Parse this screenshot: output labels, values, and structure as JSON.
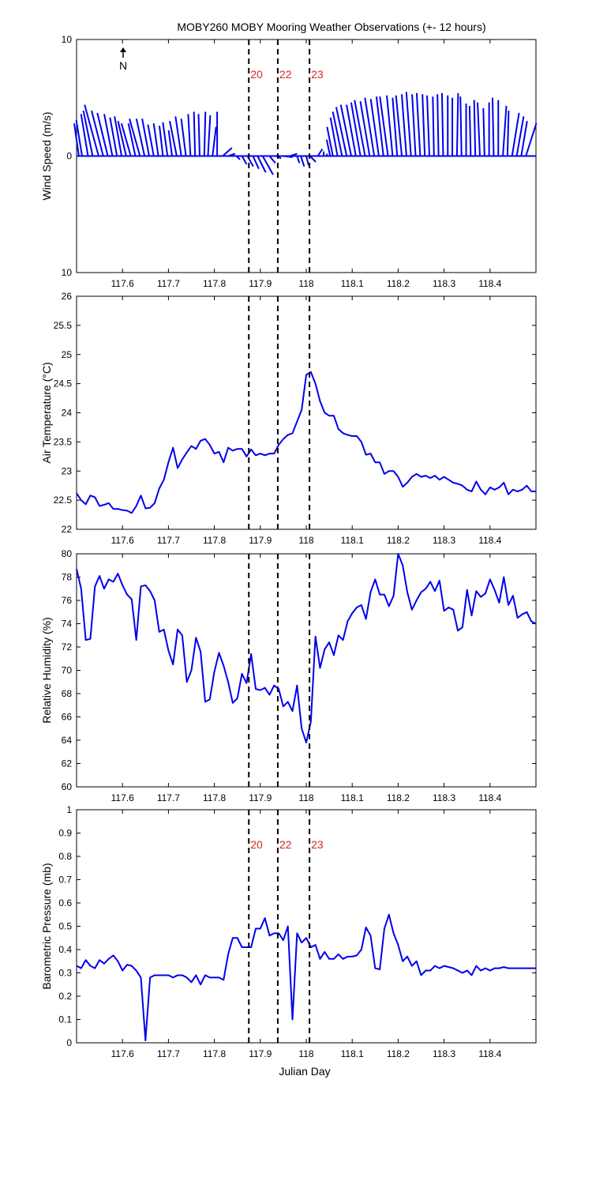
{
  "title": "MOBY260 MOBY Mooring Weather Observations (+- 12 hours)",
  "north_label": "N",
  "colors": {
    "series": "#0000ee",
    "marker_line": "#000000",
    "marker_text": "#d62728"
  },
  "chart_data": [
    {
      "id": "wind",
      "type": "line",
      "ylabel": "Wind Speed (m/s)",
      "xlim": [
        117.5,
        118.5
      ],
      "ylim": [
        -10,
        10
      ],
      "y_tick_values": [
        -10,
        0,
        10
      ],
      "y_tick_labels": [
        "10",
        "0",
        "10"
      ],
      "x_ticks": [
        "117.6",
        "117.7",
        "117.8",
        "117.9",
        "118",
        "118.1",
        "118.2",
        "118.3",
        "118.4"
      ],
      "event_markers": [
        {
          "x": 117.875,
          "label": "20"
        },
        {
          "x": 117.938,
          "label": "22"
        },
        {
          "x": 118.007,
          "label": "23"
        }
      ],
      "wind_vectors": [
        [
          117.505,
          -0.4,
          2.8
        ],
        [
          117.512,
          -0.5,
          3.1
        ],
        [
          117.525,
          -0.6,
          3.6
        ],
        [
          117.535,
          -0.8,
          3.9
        ],
        [
          117.548,
          -1.2,
          4.4
        ],
        [
          117.558,
          -1.0,
          3.9
        ],
        [
          117.568,
          -0.9,
          3.7
        ],
        [
          117.578,
          -0.7,
          3.6
        ],
        [
          117.588,
          -0.6,
          3.3
        ],
        [
          117.598,
          -0.6,
          3.4
        ],
        [
          117.608,
          -0.7,
          3.0
        ],
        [
          117.618,
          -0.8,
          2.8
        ],
        [
          117.628,
          -0.6,
          2.8
        ],
        [
          117.638,
          -0.9,
          3.2
        ],
        [
          117.648,
          -0.7,
          3.2
        ],
        [
          117.658,
          -0.6,
          3.2
        ],
        [
          117.668,
          -0.5,
          2.7
        ],
        [
          117.678,
          -0.4,
          2.8
        ],
        [
          117.688,
          -0.3,
          2.6
        ],
        [
          117.698,
          -0.4,
          2.9
        ],
        [
          117.708,
          -0.3,
          2.2
        ],
        [
          117.718,
          -0.6,
          3.0
        ],
        [
          117.728,
          -0.5,
          3.4
        ],
        [
          117.738,
          -0.4,
          3.2
        ],
        [
          117.748,
          -0.2,
          3.6
        ],
        [
          117.758,
          -0.1,
          3.8
        ],
        [
          117.768,
          -0.1,
          3.6
        ],
        [
          117.778,
          0.1,
          3.8
        ],
        [
          117.786,
          0.2,
          3.5
        ],
        [
          117.796,
          0.3,
          2.5
        ],
        [
          117.806,
          0.0,
          3.8
        ],
        [
          117.818,
          0.8,
          0.7
        ],
        [
          117.83,
          0.6,
          0.2
        ],
        [
          117.848,
          0.3,
          -0.3
        ],
        [
          117.86,
          0.4,
          -0.7
        ],
        [
          117.872,
          0.5,
          -0.9
        ],
        [
          117.884,
          0.5,
          -1.1
        ],
        [
          117.894,
          0.7,
          -1.4
        ],
        [
          117.905,
          0.9,
          -1.6
        ],
        [
          117.92,
          0.5,
          -0.6
        ],
        [
          117.935,
          0.4,
          -0.2
        ],
        [
          117.95,
          0.8,
          -0.1
        ],
        [
          117.965,
          0.6,
          0.2
        ],
        [
          117.98,
          0.2,
          -0.6
        ],
        [
          117.988,
          0.3,
          -0.9
        ],
        [
          118.0,
          0.2,
          -0.8
        ],
        [
          118.008,
          0.5,
          -0.5
        ],
        [
          118.016,
          0.4,
          0.0
        ],
        [
          118.025,
          0.4,
          0.6
        ],
        [
          118.038,
          0.0,
          0.4
        ],
        [
          118.045,
          0.0,
          0.2
        ],
        [
          118.052,
          -0.3,
          1.4
        ],
        [
          118.058,
          -0.5,
          2.5
        ],
        [
          118.068,
          -0.6,
          3.3
        ],
        [
          118.078,
          -0.8,
          3.8
        ],
        [
          118.088,
          -0.9,
          4.2
        ],
        [
          118.098,
          -0.9,
          4.4
        ],
        [
          118.108,
          -0.8,
          4.4
        ],
        [
          118.118,
          -0.8,
          4.6
        ],
        [
          118.128,
          -0.9,
          4.8
        ],
        [
          118.138,
          -0.8,
          4.7
        ],
        [
          118.148,
          -0.8,
          5.0
        ],
        [
          118.158,
          -0.7,
          4.9
        ],
        [
          118.168,
          -0.6,
          5.1
        ],
        [
          118.178,
          -0.7,
          5.1
        ],
        [
          118.188,
          -0.5,
          5.2
        ],
        [
          118.198,
          -0.4,
          5.0
        ],
        [
          118.208,
          -0.5,
          5.2
        ],
        [
          118.218,
          -0.4,
          5.3
        ],
        [
          118.228,
          -0.4,
          5.5
        ],
        [
          118.238,
          -0.3,
          5.3
        ],
        [
          118.248,
          -0.3,
          5.4
        ],
        [
          118.258,
          -0.2,
          5.3
        ],
        [
          118.268,
          -0.2,
          5.2
        ],
        [
          118.278,
          -0.1,
          5.1
        ],
        [
          118.288,
          -0.1,
          5.3
        ],
        [
          118.298,
          -0.1,
          5.4
        ],
        [
          118.308,
          0.0,
          5.2
        ],
        [
          118.318,
          0.0,
          5.0
        ],
        [
          118.328,
          0.1,
          5.4
        ],
        [
          118.338,
          -0.1,
          5.1
        ],
        [
          118.348,
          0.0,
          4.5
        ],
        [
          118.358,
          -0.1,
          4.3
        ],
        [
          118.368,
          -0.1,
          4.8
        ],
        [
          118.378,
          -0.2,
          4.6
        ],
        [
          118.388,
          -0.1,
          4.1
        ],
        [
          118.398,
          0.0,
          4.6
        ],
        [
          118.408,
          -0.1,
          5.0
        ],
        [
          118.418,
          0.0,
          4.8
        ],
        [
          118.428,
          0.3,
          4.3
        ],
        [
          118.438,
          0.1,
          3.9
        ],
        [
          118.448,
          0.6,
          3.7
        ],
        [
          118.458,
          0.6,
          3.4
        ],
        [
          118.468,
          0.5,
          3.0
        ],
        [
          118.478,
          0.9,
          2.8
        ]
      ]
    },
    {
      "id": "airtemp",
      "type": "line",
      "ylabel": "Air Temperature (°C)",
      "xlim": [
        117.5,
        118.5
      ],
      "ylim": [
        22,
        26
      ],
      "y_tick_values": [
        22,
        22.5,
        23,
        23.5,
        24,
        24.5,
        25,
        25.5,
        26
      ],
      "y_tick_labels": [
        "22",
        "22.5",
        "23",
        "23.5",
        "24",
        "24.5",
        "25",
        "25.5",
        "26"
      ],
      "x_ticks": [
        "117.6",
        "117.7",
        "117.8",
        "117.9",
        "118",
        "118.1",
        "118.2",
        "118.3",
        "118.4"
      ],
      "event_markers": [
        {
          "x": 117.875,
          "label": ""
        },
        {
          "x": 117.938,
          "label": ""
        },
        {
          "x": 118.007,
          "label": ""
        }
      ],
      "x": [
        117.5,
        117.51,
        117.52,
        117.53,
        117.54,
        117.55,
        117.56,
        117.57,
        117.58,
        117.59,
        117.6,
        117.61,
        117.62,
        117.63,
        117.64,
        117.65,
        117.66,
        117.67,
        117.68,
        117.69,
        117.7,
        117.71,
        117.72,
        117.73,
        117.74,
        117.75,
        117.76,
        117.77,
        117.78,
        117.79,
        117.8,
        117.81,
        117.82,
        117.83,
        117.84,
        117.85,
        117.86,
        117.87,
        117.88,
        117.89,
        117.9,
        117.91,
        117.92,
        117.93,
        117.94,
        117.95,
        117.96,
        117.97,
        117.98,
        117.99,
        118.0,
        118.01,
        118.02,
        118.03,
        118.04,
        118.05,
        118.06,
        118.07,
        118.08,
        118.09,
        118.1,
        118.11,
        118.12,
        118.13,
        118.14,
        118.15,
        118.16,
        118.17,
        118.18,
        118.19,
        118.2,
        118.21,
        118.22,
        118.23,
        118.24,
        118.25,
        118.26,
        118.27,
        118.28,
        118.29,
        118.3,
        118.31,
        118.32,
        118.33,
        118.34,
        118.35,
        118.36,
        118.37,
        118.38,
        118.39,
        118.4,
        118.41,
        118.42,
        118.43,
        118.44,
        118.45,
        118.46,
        118.47,
        118.48,
        118.49,
        118.5
      ],
      "values": [
        22.62,
        22.5,
        22.43,
        22.58,
        22.55,
        22.4,
        22.42,
        22.45,
        22.35,
        22.35,
        22.33,
        22.32,
        22.28,
        22.4,
        22.58,
        22.36,
        22.37,
        22.45,
        22.7,
        22.85,
        23.15,
        23.4,
        23.05,
        23.2,
        23.32,
        23.43,
        23.38,
        23.52,
        23.55,
        23.45,
        23.3,
        23.33,
        23.15,
        23.4,
        23.35,
        23.38,
        23.38,
        23.25,
        23.37,
        23.27,
        23.3,
        23.27,
        23.3,
        23.3,
        23.45,
        23.55,
        23.62,
        23.65,
        23.85,
        24.05,
        24.65,
        24.7,
        24.5,
        24.2,
        24.0,
        23.95,
        23.95,
        23.72,
        23.65,
        23.62,
        23.6,
        23.6,
        23.5,
        23.28,
        23.3,
        23.15,
        23.15,
        22.95,
        23.0,
        23.0,
        22.9,
        22.73,
        22.8,
        22.9,
        22.95,
        22.9,
        22.92,
        22.88,
        22.92,
        22.85,
        22.9,
        22.85,
        22.8,
        22.78,
        22.75,
        22.68,
        22.65,
        22.82,
        22.68,
        22.6,
        22.72,
        22.68,
        22.72,
        22.8,
        22.6,
        22.68,
        22.65,
        22.68,
        22.75,
        22.65,
        22.65
      ]
    },
    {
      "id": "humidity",
      "type": "line",
      "ylabel": "Relative Humidity (%)",
      "xlim": [
        117.5,
        118.5
      ],
      "ylim": [
        60,
        80
      ],
      "y_tick_values": [
        60,
        62,
        64,
        66,
        68,
        70,
        72,
        74,
        76,
        78,
        80
      ],
      "y_tick_labels": [
        "60",
        "62",
        "64",
        "66",
        "68",
        "70",
        "72",
        "74",
        "76",
        "78",
        "80"
      ],
      "x_ticks": [
        "117.6",
        "117.7",
        "117.8",
        "117.9",
        "118",
        "118.1",
        "118.2",
        "118.3",
        "118.4"
      ],
      "event_markers": [
        {
          "x": 117.875,
          "label": ""
        },
        {
          "x": 117.938,
          "label": ""
        },
        {
          "x": 118.007,
          "label": ""
        }
      ],
      "x": [
        117.5,
        117.51,
        117.52,
        117.53,
        117.54,
        117.55,
        117.56,
        117.57,
        117.58,
        117.59,
        117.6,
        117.61,
        117.62,
        117.63,
        117.64,
        117.65,
        117.66,
        117.67,
        117.68,
        117.69,
        117.7,
        117.71,
        117.72,
        117.73,
        117.74,
        117.75,
        117.76,
        117.77,
        117.78,
        117.79,
        117.8,
        117.81,
        117.82,
        117.83,
        117.84,
        117.85,
        117.86,
        117.87,
        117.88,
        117.89,
        117.9,
        117.91,
        117.92,
        117.93,
        117.94,
        117.95,
        117.96,
        117.97,
        117.98,
        117.99,
        118.0,
        118.01,
        118.02,
        118.03,
        118.04,
        118.05,
        118.06,
        118.07,
        118.08,
        118.09,
        118.1,
        118.11,
        118.12,
        118.13,
        118.14,
        118.15,
        118.16,
        118.17,
        118.18,
        118.19,
        118.2,
        118.21,
        118.22,
        118.23,
        118.24,
        118.25,
        118.26,
        118.27,
        118.28,
        118.29,
        118.3,
        118.31,
        118.32,
        118.33,
        118.34,
        118.35,
        118.36,
        118.37,
        118.38,
        118.39,
        118.4,
        118.41,
        118.42,
        118.43,
        118.44,
        118.45,
        118.46,
        118.47,
        118.48,
        118.49,
        118.5
      ],
      "values": [
        78.7,
        77.0,
        72.6,
        72.7,
        77.2,
        78.1,
        77.0,
        77.8,
        77.6,
        78.3,
        77.3,
        76.5,
        76.1,
        72.6,
        77.2,
        77.3,
        76.8,
        76.0,
        73.3,
        73.5,
        71.7,
        70.5,
        73.5,
        73.0,
        69.0,
        70.0,
        72.8,
        71.6,
        67.3,
        67.5,
        69.9,
        71.5,
        70.4,
        69.0,
        67.2,
        67.6,
        69.7,
        68.9,
        71.4,
        68.4,
        68.3,
        68.5,
        67.9,
        68.7,
        68.4,
        66.9,
        67.3,
        66.5,
        68.7,
        65.0,
        63.8,
        65.6,
        72.9,
        70.2,
        71.8,
        72.4,
        71.3,
        73.0,
        72.6,
        74.2,
        74.9,
        75.4,
        75.6,
        74.4,
        76.7,
        77.8,
        76.5,
        76.5,
        75.5,
        76.4,
        80.0,
        79.0,
        76.7,
        75.2,
        76.0,
        76.7,
        77.0,
        77.6,
        76.8,
        77.7,
        75.1,
        75.4,
        75.2,
        73.4,
        73.7,
        76.9,
        74.7,
        76.8,
        76.3,
        76.6,
        77.8,
        76.9,
        75.8,
        78.0,
        75.6,
        76.4,
        74.5,
        74.8,
        75.0,
        74.2,
        74.0
      ]
    },
    {
      "id": "pressure",
      "type": "line",
      "ylabel": "Barometric Pressure (mb)",
      "xlabel": "Julian Day",
      "xlim": [
        117.5,
        118.5
      ],
      "ylim": [
        0,
        1
      ],
      "y_tick_values": [
        0,
        0.1,
        0.2,
        0.3,
        0.4,
        0.5,
        0.6,
        0.7,
        0.8,
        0.9,
        1
      ],
      "y_tick_labels": [
        "0",
        "0.1",
        "0.2",
        "0.3",
        "0.4",
        "0.5",
        "0.6",
        "0.7",
        "0.8",
        "0.9",
        "1"
      ],
      "x_ticks": [
        "117.6",
        "117.7",
        "117.8",
        "117.9",
        "118",
        "118.1",
        "118.2",
        "118.3",
        "118.4"
      ],
      "event_markers": [
        {
          "x": 117.875,
          "label": "20"
        },
        {
          "x": 117.938,
          "label": "22"
        },
        {
          "x": 118.007,
          "label": "23"
        }
      ],
      "x": [
        117.5,
        117.51,
        117.52,
        117.53,
        117.54,
        117.55,
        117.56,
        117.57,
        117.58,
        117.59,
        117.6,
        117.61,
        117.62,
        117.63,
        117.64,
        117.65,
        117.66,
        117.67,
        117.68,
        117.69,
        117.7,
        117.71,
        117.72,
        117.73,
        117.74,
        117.75,
        117.76,
        117.77,
        117.78,
        117.79,
        117.8,
        117.81,
        117.82,
        117.83,
        117.84,
        117.85,
        117.86,
        117.87,
        117.88,
        117.89,
        117.9,
        117.91,
        117.92,
        117.93,
        117.94,
        117.95,
        117.96,
        117.97,
        117.98,
        117.99,
        118.0,
        118.01,
        118.02,
        118.03,
        118.04,
        118.05,
        118.06,
        118.07,
        118.08,
        118.09,
        118.1,
        118.11,
        118.12,
        118.13,
        118.14,
        118.15,
        118.16,
        118.17,
        118.18,
        118.19,
        118.2,
        118.21,
        118.22,
        118.23,
        118.24,
        118.25,
        118.26,
        118.27,
        118.28,
        118.29,
        118.3,
        118.31,
        118.32,
        118.33,
        118.34,
        118.35,
        118.36,
        118.37,
        118.38,
        118.39,
        118.4,
        118.41,
        118.42,
        118.43,
        118.44,
        118.45,
        118.46,
        118.47,
        118.48,
        118.49,
        118.5
      ],
      "values": [
        0.33,
        0.32,
        0.355,
        0.33,
        0.32,
        0.355,
        0.34,
        0.36,
        0.375,
        0.35,
        0.31,
        0.335,
        0.33,
        0.31,
        0.28,
        0.01,
        0.28,
        0.29,
        0.29,
        0.29,
        0.29,
        0.28,
        0.29,
        0.29,
        0.28,
        0.26,
        0.29,
        0.25,
        0.29,
        0.28,
        0.28,
        0.28,
        0.27,
        0.38,
        0.45,
        0.45,
        0.41,
        0.41,
        0.41,
        0.49,
        0.49,
        0.535,
        0.46,
        0.47,
        0.47,
        0.44,
        0.5,
        0.1,
        0.47,
        0.43,
        0.45,
        0.41,
        0.42,
        0.36,
        0.39,
        0.36,
        0.36,
        0.38,
        0.36,
        0.37,
        0.37,
        0.375,
        0.4,
        0.495,
        0.46,
        0.32,
        0.315,
        0.49,
        0.55,
        0.47,
        0.42,
        0.35,
        0.37,
        0.33,
        0.35,
        0.29,
        0.31,
        0.31,
        0.33,
        0.32,
        0.33,
        0.325,
        0.32,
        0.31,
        0.3,
        0.31,
        0.29,
        0.33,
        0.31,
        0.32,
        0.31,
        0.32,
        0.32,
        0.325,
        0.32,
        0.32,
        0.32,
        0.32,
        0.32,
        0.32,
        0.32
      ]
    }
  ]
}
